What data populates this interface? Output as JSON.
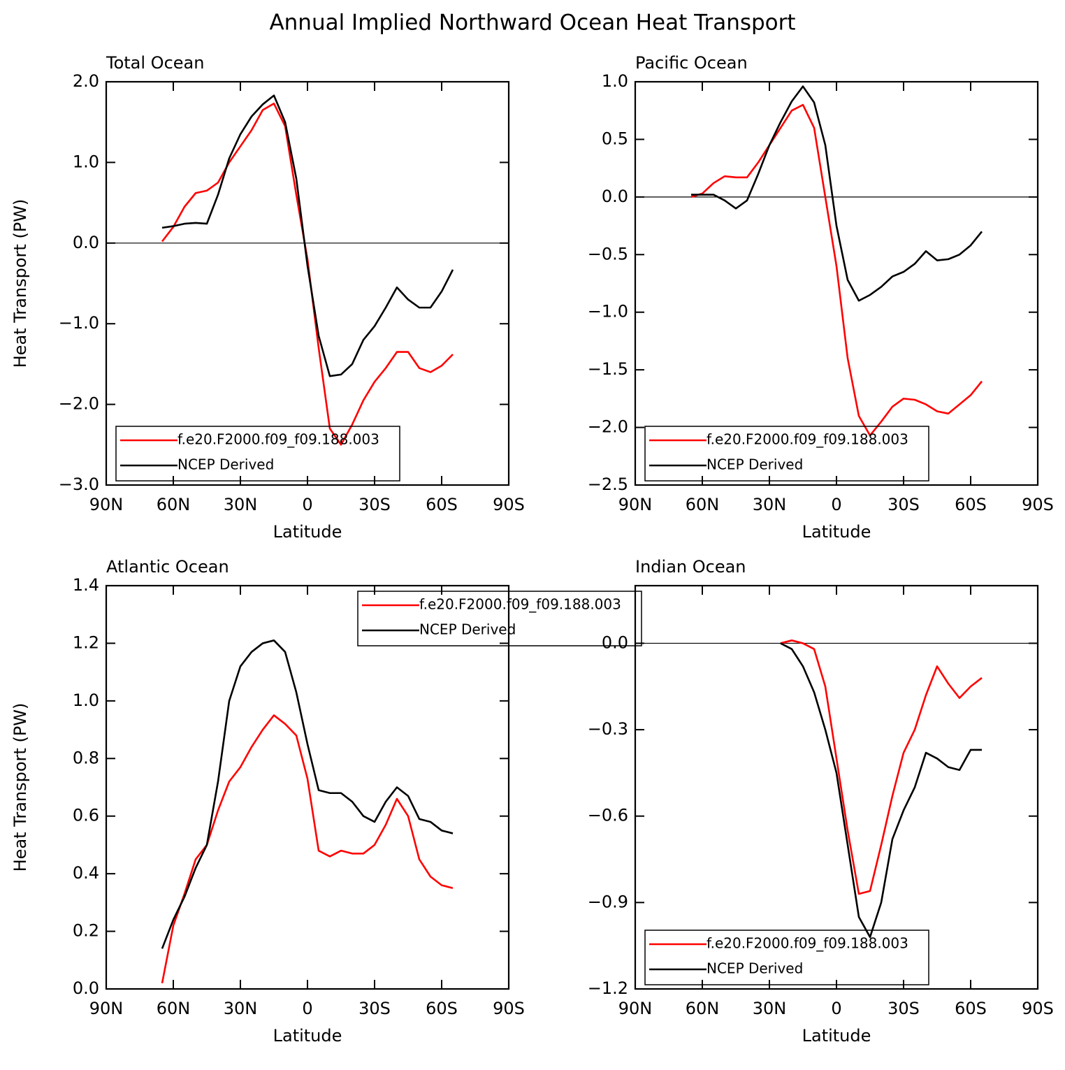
{
  "title": "Annual Implied Northward Ocean Heat Transport",
  "chart_data": [
    {
      "type": "line",
      "title": "Total Ocean",
      "xlabel": "Latitude",
      "ylabel": "Heat Transport (PW)",
      "x": [
        65,
        60,
        55,
        50,
        45,
        40,
        35,
        30,
        25,
        20,
        15,
        10,
        5,
        0,
        -5,
        -10,
        -15,
        -20,
        -25,
        -30,
        -35,
        -40,
        -45,
        -50,
        -55,
        -60,
        -65
      ],
      "series": [
        {
          "name": "f.e20.F2000.f09_f09.188.003",
          "color": "#ff0000",
          "values": [
            0.02,
            0.2,
            0.45,
            0.62,
            0.65,
            0.75,
            1.0,
            1.2,
            1.4,
            1.65,
            1.73,
            1.45,
            0.6,
            -0.2,
            -1.3,
            -2.3,
            -2.5,
            -2.25,
            -1.95,
            -1.72,
            -1.55,
            -1.35,
            -1.35,
            -1.55,
            -1.6,
            -1.52,
            -1.38
          ]
        },
        {
          "name": "NCEP Derived",
          "color": "#000000",
          "values": [
            0.19,
            0.21,
            0.24,
            0.25,
            0.24,
            0.6,
            1.05,
            1.35,
            1.57,
            1.72,
            1.83,
            1.5,
            0.8,
            -0.28,
            -1.15,
            -1.65,
            -1.63,
            -1.5,
            -1.2,
            -1.03,
            -0.8,
            -0.55,
            -0.7,
            -0.8,
            -0.8,
            -0.6,
            -0.33
          ]
        }
      ],
      "xlim": [
        90,
        -90
      ],
      "xticks": [
        {
          "value": 90,
          "label": "90N"
        },
        {
          "value": 60,
          "label": "60N"
        },
        {
          "value": 30,
          "label": "30N"
        },
        0,
        {
          "value": -30,
          "label": "30S"
        },
        {
          "value": -60,
          "label": "60S"
        },
        {
          "value": -90,
          "label": "90S"
        }
      ],
      "ylim": [
        -3,
        2
      ],
      "yticks": [
        {
          "value": -3,
          "label": "−3.0"
        },
        {
          "value": -2,
          "label": "−2.0"
        },
        {
          "value": -1,
          "label": "−1.0"
        },
        {
          "value": 0,
          "label": "0.0"
        },
        {
          "value": 1,
          "label": "1.0"
        },
        {
          "value": 2,
          "label": "2.0"
        }
      ],
      "zero_line": true,
      "legend": "lower left"
    },
    {
      "type": "line",
      "title": "Pacific Ocean",
      "xlabel": "Latitude",
      "x": [
        65,
        60,
        55,
        50,
        45,
        40,
        35,
        30,
        25,
        20,
        15,
        10,
        5,
        0,
        -5,
        -10,
        -15,
        -20,
        -25,
        -30,
        -35,
        -40,
        -45,
        -50,
        -55,
        -60,
        -65
      ],
      "series": [
        {
          "name": "f.e20.F2000.f09_f09.188.003",
          "color": "#ff0000",
          "values": [
            0.0,
            0.03,
            0.12,
            0.18,
            0.17,
            0.17,
            0.3,
            0.45,
            0.6,
            0.75,
            0.8,
            0.6,
            0.0,
            -0.6,
            -1.4,
            -1.9,
            -2.07,
            -1.95,
            -1.82,
            -1.75,
            -1.76,
            -1.8,
            -1.86,
            -1.88,
            -1.8,
            -1.72,
            -1.6
          ]
        },
        {
          "name": "NCEP Derived",
          "color": "#000000",
          "values": [
            0.02,
            0.02,
            0.02,
            -0.03,
            -0.1,
            -0.03,
            0.2,
            0.45,
            0.65,
            0.83,
            0.96,
            0.82,
            0.45,
            -0.25,
            -0.72,
            -0.9,
            -0.85,
            -0.78,
            -0.69,
            -0.65,
            -0.58,
            -0.47,
            -0.55,
            -0.54,
            -0.5,
            -0.42,
            -0.3
          ]
        }
      ],
      "xlim": [
        90,
        -90
      ],
      "xticks": [
        {
          "value": 90,
          "label": "90N"
        },
        {
          "value": 60,
          "label": "60N"
        },
        {
          "value": 30,
          "label": "30N"
        },
        0,
        {
          "value": -30,
          "label": "30S"
        },
        {
          "value": -60,
          "label": "60S"
        },
        {
          "value": -90,
          "label": "90S"
        }
      ],
      "ylim": [
        -2.5,
        1.0
      ],
      "yticks": [
        {
          "value": -2.5,
          "label": "−2.5"
        },
        {
          "value": -2,
          "label": "−2.0"
        },
        {
          "value": -1.5,
          "label": "−1.5"
        },
        {
          "value": -1,
          "label": "−1.0"
        },
        {
          "value": -0.5,
          "label": "−0.5"
        },
        {
          "value": 0,
          "label": "0.0"
        },
        0.5,
        {
          "value": 1,
          "label": "1.0"
        }
      ],
      "zero_line": true,
      "legend": "lower left"
    },
    {
      "type": "line",
      "title": "Atlantic Ocean",
      "xlabel": "Latitude",
      "ylabel": "Heat Transport (PW)",
      "x": [
        65,
        60,
        55,
        50,
        45,
        40,
        35,
        30,
        25,
        20,
        15,
        10,
        5,
        0,
        -5,
        -10,
        -15,
        -20,
        -25,
        -30,
        -35,
        -40,
        -45,
        -50,
        -55,
        -60,
        -65
      ],
      "series": [
        {
          "name": "f.e20.F2000.f09_f09.188.003",
          "color": "#ff0000",
          "values": [
            0.02,
            0.22,
            0.33,
            0.45,
            0.5,
            0.62,
            0.72,
            0.77,
            0.84,
            0.9,
            0.95,
            0.92,
            0.88,
            0.73,
            0.48,
            0.46,
            0.48,
            0.47,
            0.47,
            0.5,
            0.57,
            0.66,
            0.6,
            0.45,
            0.39,
            0.36,
            0.35
          ]
        },
        {
          "name": "NCEP Derived",
          "color": "#000000",
          "values": [
            0.14,
            0.24,
            0.32,
            0.42,
            0.5,
            0.72,
            1.0,
            1.12,
            1.17,
            1.2,
            1.21,
            1.17,
            1.03,
            0.85,
            0.69,
            0.68,
            0.68,
            0.65,
            0.6,
            0.58,
            0.65,
            0.7,
            0.67,
            0.59,
            0.58,
            0.55,
            0.54
          ]
        }
      ],
      "xlim": [
        90,
        -90
      ],
      "xticks": [
        {
          "value": 90,
          "label": "90N"
        },
        {
          "value": 60,
          "label": "60N"
        },
        {
          "value": 30,
          "label": "30N"
        },
        0,
        {
          "value": -30,
          "label": "30S"
        },
        {
          "value": -60,
          "label": "60S"
        },
        {
          "value": -90,
          "label": "90S"
        }
      ],
      "ylim": [
        0,
        1.4
      ],
      "yticks": [
        {
          "value": 0,
          "label": "0.0"
        },
        0.2,
        0.4,
        0.6,
        0.8,
        {
          "value": 1,
          "label": "1.0"
        },
        1.2,
        1.4
      ],
      "zero_line": true,
      "legend": "upper right"
    },
    {
      "type": "line",
      "title": "Indian Ocean",
      "xlabel": "Latitude",
      "x": [
        65,
        60,
        55,
        50,
        45,
        40,
        35,
        30,
        25,
        20,
        15,
        10,
        5,
        0,
        -5,
        -10,
        -15,
        -20,
        -25,
        -30,
        -35,
        -40,
        -45,
        -50,
        -55,
        -60,
        -65
      ],
      "series": [
        {
          "name": "f.e20.F2000.f09_f09.188.003",
          "color": "#ff0000",
          "values": [
            null,
            null,
            null,
            null,
            null,
            null,
            null,
            null,
            0.0,
            0.01,
            0.0,
            -0.02,
            -0.15,
            -0.4,
            -0.65,
            -0.87,
            -0.86,
            -0.7,
            -0.53,
            -0.38,
            -0.3,
            -0.18,
            -0.08,
            -0.14,
            -0.19,
            -0.15,
            -0.12
          ]
        },
        {
          "name": "NCEP Derived",
          "color": "#000000",
          "values": [
            null,
            null,
            null,
            null,
            null,
            null,
            null,
            null,
            0.0,
            -0.02,
            -0.08,
            -0.17,
            -0.3,
            -0.45,
            -0.7,
            -0.95,
            -1.02,
            -0.9,
            -0.68,
            -0.58,
            -0.5,
            -0.38,
            -0.4,
            -0.43,
            -0.44,
            -0.37,
            -0.37
          ]
        }
      ],
      "xlim": [
        90,
        -90
      ],
      "xticks": [
        {
          "value": 90,
          "label": "90N"
        },
        {
          "value": 60,
          "label": "60N"
        },
        {
          "value": 30,
          "label": "30N"
        },
        0,
        {
          "value": -30,
          "label": "30S"
        },
        {
          "value": -60,
          "label": "60S"
        },
        {
          "value": -90,
          "label": "90S"
        }
      ],
      "ylim": [
        -1.2,
        0.2
      ],
      "yticks": [
        {
          "value": -1.2,
          "label": "−1.2"
        },
        {
          "value": -0.9,
          "label": "−0.9"
        },
        {
          "value": -0.6,
          "label": "−0.6"
        },
        {
          "value": -0.3,
          "label": "−0.3"
        },
        {
          "value": 0,
          "label": "0.0"
        }
      ],
      "zero_line": true,
      "legend": "lower left"
    }
  ]
}
